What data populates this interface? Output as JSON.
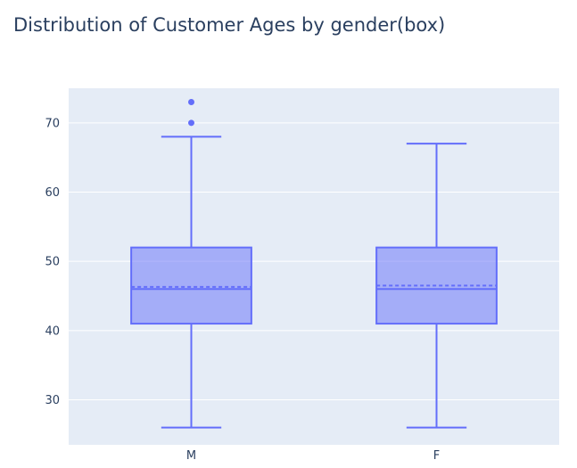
{
  "chart_data": {
    "type": "box",
    "title": "Distribution of Customer Ages by gender(box)",
    "xlabel": "",
    "ylabel": "",
    "categories": [
      "M",
      "F"
    ],
    "ylim": [
      23.5,
      75
    ],
    "yticks": [
      30,
      40,
      50,
      60,
      70
    ],
    "grid": true,
    "boxes": [
      {
        "category": "M",
        "whisker_low": 26,
        "q1": 41,
        "median": 46,
        "mean": 46.3,
        "q3": 52,
        "whisker_high": 68,
        "outliers": [
          70,
          73
        ]
      },
      {
        "category": "F",
        "whisker_low": 26,
        "q1": 41,
        "median": 46,
        "mean": 46.5,
        "q3": 52,
        "whisker_high": 67,
        "outliers": []
      }
    ],
    "colors": {
      "line": "#636efa",
      "fill": "rgba(99,110,250,0.5)",
      "plot_bg": "#e5ecf6",
      "grid": "#ffffff",
      "text": "#2a3f5f"
    }
  }
}
